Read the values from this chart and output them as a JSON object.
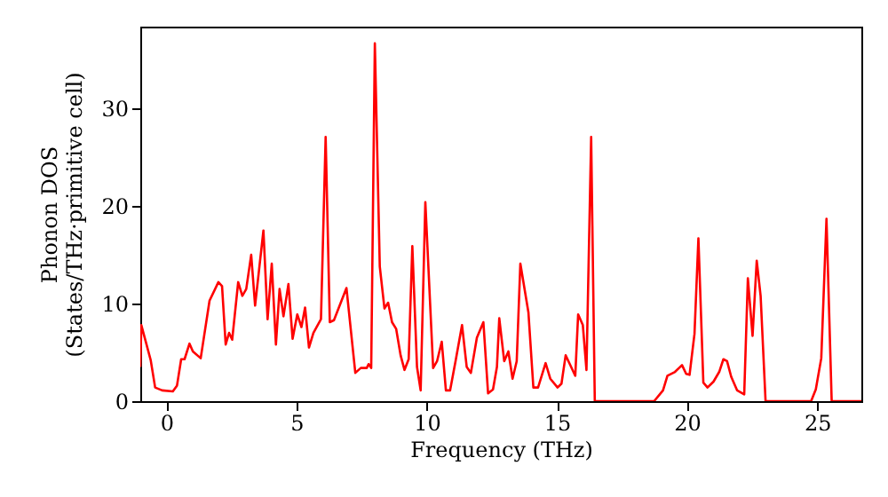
{
  "chart_data": {
    "type": "line",
    "xlabel": "Frequency (THz)",
    "ylabel": "Phonon DOS\n(States/THz·primitive cell)",
    "xlim": [
      -1,
      26.7
    ],
    "ylim": [
      0,
      38.4
    ],
    "xticks": [
      0,
      5,
      10,
      15,
      20,
      25
    ],
    "yticks": [
      0,
      10,
      20,
      30
    ],
    "grid": false,
    "series": [
      {
        "color": "#ff0000",
        "x": [
          -1,
          -0.96,
          -0.6,
          -0.43,
          -0.16,
          0.25,
          0.41,
          0.57,
          0.7,
          0.89,
          1.02,
          1.32,
          1.66,
          2.0,
          2.14,
          2.28,
          2.41,
          2.53,
          2.76,
          2.92,
          3.07,
          3.26,
          3.41,
          3.73,
          3.89,
          4.05,
          4.21,
          4.35,
          4.5,
          4.69,
          4.85,
          5.03,
          5.19,
          5.33,
          5.48,
          5.65,
          5.94,
          6.12,
          6.28,
          6.44,
          6.92,
          7.26,
          7.47,
          7.7,
          7.77,
          7.87,
          8.01,
          8.2,
          8.38,
          8.52,
          8.67,
          8.83,
          9.0,
          9.15,
          9.31,
          9.45,
          9.63,
          9.77,
          9.95,
          10.25,
          10.4,
          10.58,
          10.74,
          10.9,
          11.11,
          11.36,
          11.54,
          11.7,
          11.93,
          12.18,
          12.36,
          12.55,
          12.7,
          12.79,
          12.98,
          13.14,
          13.3,
          13.46,
          13.6,
          13.91,
          14.1,
          14.28,
          14.57,
          14.75,
          15.03,
          15.18,
          15.34,
          15.5,
          15.71,
          15.82,
          16.0,
          16.14,
          16.32,
          16.46,
          18.74,
          19.08,
          19.25,
          19.54,
          19.81,
          19.97,
          20.1,
          20.29,
          20.44,
          20.63,
          20.79,
          21.02,
          21.24,
          21.4,
          21.54,
          21.7,
          21.93,
          22.2,
          22.34,
          22.52,
          22.68,
          22.83,
          23.02,
          24.77,
          24.95,
          25.16,
          25.36,
          25.56,
          26.7
        ],
        "values": [
          3.5,
          7.8,
          4.2,
          1.4,
          1.1,
          1.0,
          1.6,
          4.3,
          4.3,
          5.9,
          5.1,
          4.4,
          10.3,
          12.2,
          11.8,
          5.8,
          7.0,
          6.3,
          12.2,
          10.8,
          11.5,
          15.0,
          9.8,
          17.5,
          8.4,
          14.1,
          5.8,
          11.5,
          8.7,
          12.0,
          6.4,
          8.9,
          7.6,
          9.6,
          5.5,
          7.0,
          8.4,
          27.1,
          8.1,
          8.3,
          11.6,
          2.9,
          3.4,
          3.4,
          3.8,
          3.4,
          36.7,
          13.8,
          9.5,
          10.1,
          8.1,
          7.4,
          4.7,
          3.2,
          4.3,
          15.9,
          3.5,
          1.1,
          20.4,
          3.4,
          4.1,
          6.1,
          1.1,
          1.1,
          4.1,
          7.8,
          3.5,
          2.9,
          6.5,
          8.1,
          0.8,
          1.2,
          3.5,
          8.5,
          4.1,
          5.1,
          2.3,
          4.1,
          14.1,
          9.1,
          1.4,
          1.4,
          3.9,
          2.3,
          1.4,
          1.8,
          4.7,
          3.8,
          2.6,
          8.9,
          7.8,
          3.2,
          27.1,
          0,
          0,
          1.1,
          2.6,
          3.0,
          3.7,
          2.8,
          2.7,
          6.9,
          16.7,
          1.9,
          1.4,
          2.0,
          3.0,
          4.3,
          4.1,
          2.5,
          1.1,
          0.7,
          12.6,
          6.7,
          14.4,
          10.8,
          0,
          0,
          1.2,
          4.4,
          18.7,
          0,
          0
        ]
      }
    ]
  }
}
